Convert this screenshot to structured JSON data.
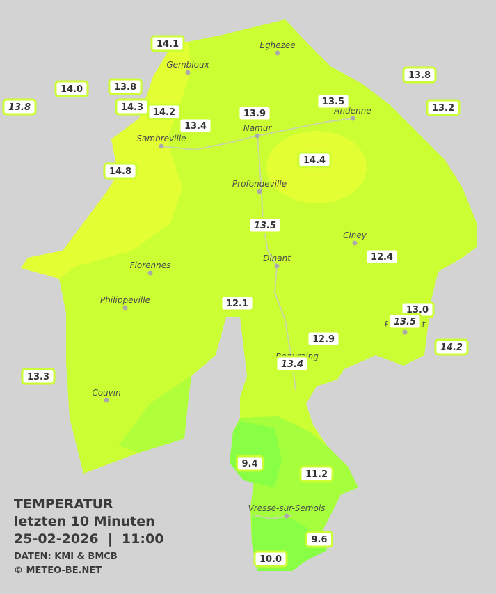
{
  "legend": {
    "title": "TEMPERATUR",
    "period": "letzten 10 Minuten",
    "datetime": "25-02-2026  |  11:00",
    "source": "DATEN: KMI & BMCB",
    "copyright": "© METEO-BE.NET"
  },
  "cities": [
    "Eghezee",
    "Gembloux",
    "Andenne",
    "Namur",
    "Sambreville",
    "Profondeville",
    "Ciney",
    "Dinant",
    "Florennes",
    "Philippeville",
    "Rochefort",
    "Beauraing",
    "Couvin",
    "Vresse-sur-Semois"
  ],
  "stations": [
    {
      "label": "14.1",
      "italic": false
    },
    {
      "label": "14.0",
      "italic": false
    },
    {
      "label": "13.8",
      "italic": true
    },
    {
      "label": "13.8",
      "italic": false
    },
    {
      "label": "14.3",
      "italic": false
    },
    {
      "label": "14.2",
      "italic": false
    },
    {
      "label": "13.4",
      "italic": false
    },
    {
      "label": "13.9",
      "italic": false
    },
    {
      "label": "13.5",
      "italic": false
    },
    {
      "label": "13.8",
      "italic": false
    },
    {
      "label": "13.2",
      "italic": false
    },
    {
      "label": "14.8",
      "italic": false
    },
    {
      "label": "14.4",
      "italic": false
    },
    {
      "label": "13.5",
      "italic": true
    },
    {
      "label": "12.4",
      "italic": false
    },
    {
      "label": "12.1",
      "italic": false
    },
    {
      "label": "13.0",
      "italic": false
    },
    {
      "label": "13.5",
      "italic": true
    },
    {
      "label": "12.9",
      "italic": false
    },
    {
      "label": "13.4",
      "italic": true
    },
    {
      "label": "14.2",
      "italic": true
    },
    {
      "label": "13.3",
      "italic": false
    },
    {
      "label": "9.4",
      "italic": false
    },
    {
      "label": "11.2",
      "italic": false
    },
    {
      "label": "9.6",
      "italic": false
    },
    {
      "label": "10.0",
      "italic": false
    }
  ]
}
